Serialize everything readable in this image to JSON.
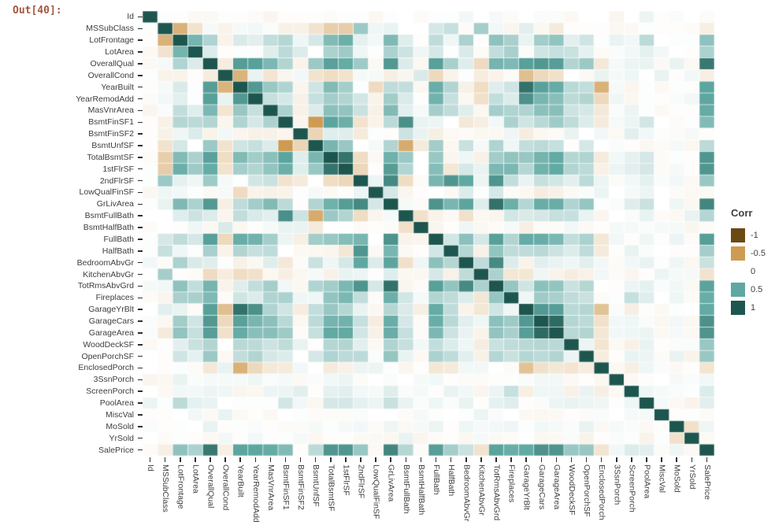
{
  "notebook": {
    "out_label": "Out[40]:"
  },
  "legend": {
    "title": "Corr",
    "ticks": [
      "-1",
      "-0.5",
      "0",
      "0.5",
      "1"
    ],
    "swatch_colors": [
      "#6b4914",
      "#cf9b52",
      "#ffffff",
      "#5fa8a2",
      "#1d564e"
    ]
  },
  "colors": {
    "axis_label": "#3d3d3d",
    "tick_mark": "#2f2f2f",
    "prompt": "#a5573e",
    "background": "#ffffff"
  },
  "chart_data": {
    "type": "heatmap",
    "title": "",
    "xlabel": "",
    "ylabel": "",
    "legend_title": "Corr",
    "legend_position": "right",
    "colormap": {
      "domain": [
        -1,
        -0.5,
        0,
        0.5,
        1
      ],
      "range": [
        "#6b4914",
        "#cf9b52",
        "#ffffff",
        "#5fa8a2",
        "#1d564e"
      ]
    },
    "categories": [
      "Id",
      "MSSubClass",
      "LotFrontage",
      "LotArea",
      "OverallQual",
      "OverallCond",
      "YearBuilt",
      "YearRemodAdd",
      "MasVnrArea",
      "BsmtFinSF1",
      "BsmtFinSF2",
      "BsmtUnfSF",
      "TotalBsmtSF",
      "1stFlrSF",
      "2ndFlrSF",
      "LowQualFinSF",
      "GrLivArea",
      "BsmtFullBath",
      "BsmtHalfBath",
      "FullBath",
      "HalfBath",
      "BedroomAbvGr",
      "KitchenAbvGr",
      "TotRmsAbvGrd",
      "Fireplaces",
      "GarageYrBlt",
      "GarageCars",
      "GarageArea",
      "WoodDeckSF",
      "OpenPorchSF",
      "EnclosedPorch",
      "3SsnPorch",
      "ScreenPorch",
      "PoolArea",
      "MiscVal",
      "MoSold",
      "YrSold",
      "SalePrice"
    ],
    "matrix_upper": [
      [
        1,
        0.01,
        -0.01,
        -0.03,
        -0.03,
        0.01,
        -0.01,
        -0.02,
        -0.05,
        -0.01,
        -0.01,
        -0.01,
        -0.02,
        0.01,
        0.01,
        -0.04,
        0.01,
        0,
        -0.02,
        0.01,
        0.01,
        0.04,
        0,
        0.03,
        -0.02,
        0,
        0.02,
        0.02,
        -0.03,
        0,
        0,
        -0.05,
        0,
        0.06,
        -0.01,
        0.02,
        0,
        -0.02
      ],
      [
        1,
        -0.39,
        -0.14,
        0.03,
        -0.06,
        0.03,
        0.04,
        0.02,
        -0.07,
        -0.07,
        -0.14,
        -0.24,
        -0.25,
        0.31,
        0.05,
        0.07,
        0,
        0,
        0.13,
        0.18,
        -0.02,
        0.28,
        0.04,
        -0.05,
        0.09,
        -0.04,
        -0.1,
        -0.01,
        -0.01,
        -0.01,
        -0.04,
        -0.03,
        0.01,
        -0.01,
        -0.01,
        -0.02,
        -0.08
      ],
      [
        1,
        0.43,
        0.25,
        -0.06,
        0.12,
        0.09,
        0.19,
        0.23,
        0.05,
        0.13,
        0.39,
        0.46,
        0.08,
        0.04,
        0.4,
        0.1,
        -0.01,
        0.2,
        0.05,
        0.26,
        -0.01,
        0.35,
        0.27,
        0.07,
        0.29,
        0.34,
        0.09,
        0.15,
        0.01,
        0.07,
        0.04,
        0.21,
        0,
        0.01,
        0.01,
        0.35
      ],
      [
        1,
        0.11,
        -0.01,
        0.01,
        0.01,
        0.1,
        0.21,
        0.11,
        0,
        0.26,
        0.3,
        0.05,
        0.01,
        0.26,
        0.16,
        0.05,
        0.13,
        0.01,
        0.12,
        -0.02,
        0.19,
        0.27,
        -0.02,
        0.15,
        0.18,
        0.17,
        0.08,
        -0.02,
        0.02,
        0.04,
        0.08,
        0.04,
        0,
        -0.01,
        0.26
      ],
      [
        1,
        -0.09,
        0.57,
        0.55,
        0.41,
        0.24,
        -0.06,
        0.31,
        0.54,
        0.48,
        0.3,
        -0.03,
        0.59,
        0.11,
        -0.04,
        0.55,
        0.27,
        0.1,
        -0.18,
        0.43,
        0.4,
        0.55,
        0.6,
        0.56,
        0.24,
        0.31,
        -0.11,
        0.03,
        0.06,
        0.07,
        -0.03,
        0.07,
        -0.03,
        0.79
      ],
      [
        1,
        -0.38,
        0.07,
        -0.13,
        -0.05,
        0.04,
        -0.14,
        -0.17,
        -0.14,
        0.03,
        0.03,
        -0.08,
        -0.05,
        0.12,
        -0.19,
        -0.06,
        0.01,
        -0.09,
        -0.06,
        -0.02,
        -0.32,
        -0.19,
        -0.15,
        0,
        -0.03,
        0.07,
        0.03,
        0.05,
        0,
        0.07,
        -0.01,
        0.04,
        -0.08
      ],
      [
        1,
        0.59,
        0.32,
        0.25,
        -0.05,
        0.15,
        0.39,
        0.28,
        0.01,
        -0.18,
        0.2,
        0.19,
        -0.04,
        0.47,
        0.24,
        -0.07,
        -0.17,
        0.1,
        0.15,
        0.83,
        0.54,
        0.48,
        0.22,
        0.19,
        -0.39,
        0.03,
        -0.05,
        0.01,
        -0.03,
        0.01,
        -0.01,
        0.52
      ],
      [
        1,
        0.18,
        0.13,
        -0.07,
        0.18,
        0.29,
        0.24,
        0.14,
        -0.06,
        0.29,
        0.12,
        -0.01,
        0.44,
        0.18,
        -0.04,
        -0.15,
        0.19,
        0.11,
        0.64,
        0.42,
        0.37,
        0.21,
        0.24,
        -0.19,
        0.05,
        -0.04,
        0.01,
        -0.01,
        0.02,
        0.04,
        0.51
      ],
      [
        1,
        0.26,
        -0.07,
        0.11,
        0.36,
        0.34,
        0.17,
        -0.07,
        0.39,
        0.09,
        0.03,
        0.28,
        0.2,
        0.1,
        -0.04,
        0.28,
        0.25,
        0.25,
        0.36,
        0.37,
        0.16,
        0.13,
        -0.11,
        0.02,
        0.06,
        0.01,
        -0.03,
        -0.01,
        -0.01,
        0.48
      ],
      [
        1,
        -0.05,
        -0.5,
        0.52,
        0.46,
        -0.14,
        -0.06,
        0.21,
        0.65,
        0.07,
        0.06,
        0,
        -0.11,
        -0.08,
        0.04,
        0.26,
        0.15,
        0.22,
        0.3,
        0.2,
        0.11,
        -0.1,
        0.03,
        0.06,
        0.14,
        0,
        -0.02,
        0.01,
        0.39
      ],
      [
        1,
        -0.21,
        0.1,
        0.1,
        -0.1,
        0.01,
        -0.01,
        0.16,
        0.07,
        -0.08,
        -0.03,
        -0.02,
        -0.04,
        -0.04,
        0.05,
        -0.09,
        -0.04,
        -0.02,
        0.07,
        0,
        0.04,
        -0.03,
        0.09,
        0.04,
        0.01,
        -0.02,
        0.03,
        -0.01
      ],
      [
        1,
        0.42,
        0.32,
        0,
        0.03,
        0.24,
        -0.42,
        -0.1,
        0.29,
        -0.04,
        0.17,
        0.03,
        0.25,
        0.05,
        0.19,
        0.21,
        0.18,
        -0.01,
        0.13,
        0,
        0.02,
        -0.01,
        -0.04,
        -0.02,
        0.03,
        -0.04,
        0.21
      ],
      [
        1,
        0.82,
        -0.17,
        -0.03,
        0.45,
        0.31,
        0,
        0.32,
        -0.05,
        0.05,
        -0.07,
        0.29,
        0.34,
        0.32,
        0.43,
        0.49,
        0.23,
        0.25,
        -0.1,
        0.04,
        0.08,
        0.13,
        -0.02,
        0.01,
        -0.01,
        0.61
      ],
      [
        1,
        -0.2,
        -0.01,
        0.57,
        0.24,
        0,
        0.38,
        -0.12,
        0.13,
        0.07,
        0.41,
        0.41,
        0.23,
        0.44,
        0.49,
        0.24,
        0.21,
        -0.07,
        0.06,
        0.09,
        0.13,
        -0.02,
        0.03,
        -0.01,
        0.61
      ],
      [
        1,
        0.06,
        0.69,
        -0.17,
        -0.02,
        0.42,
        0.61,
        0.5,
        0.06,
        0.62,
        0.19,
        0.07,
        0.18,
        0.14,
        0.09,
        0.21,
        0.06,
        -0.02,
        0.04,
        0.08,
        0.02,
        0.04,
        -0.03,
        0.32
      ],
      [
        1,
        0.13,
        -0.05,
        -0.01,
        0,
        -0.03,
        0.11,
        0.01,
        0.13,
        -0.02,
        -0.04,
        -0.09,
        -0.07,
        -0.03,
        0.02,
        0.06,
        0,
        0.03,
        0.06,
        0,
        -0.02,
        -0.03,
        -0.03
      ],
      [
        1,
        0.03,
        -0.02,
        0.63,
        0.42,
        0.52,
        0.1,
        0.83,
        0.46,
        0.23,
        0.47,
        0.47,
        0.25,
        0.33,
        0.01,
        0.02,
        0.1,
        0.17,
        0,
        0.05,
        -0.04,
        0.71
      ],
      [
        1,
        -0.15,
        -0.06,
        -0.03,
        -0.15,
        -0.04,
        -0.05,
        0.14,
        0.12,
        0.13,
        0.18,
        0.18,
        0.07,
        -0.05,
        0,
        0.02,
        0.07,
        -0.02,
        -0.03,
        0.07,
        0.23
      ],
      [
        1,
        -0.05,
        -0.01,
        0.05,
        -0.04,
        -0.02,
        0.03,
        -0.08,
        -0.02,
        -0.02,
        0.04,
        -0.03,
        -0.01,
        0.03,
        0.03,
        0.02,
        0.03,
        0.03,
        -0.05,
        -0.02
      ],
      [
        1,
        0.14,
        0.36,
        0.13,
        0.55,
        0.24,
        0.48,
        0.47,
        0.41,
        0.19,
        0.26,
        -0.12,
        0.04,
        -0.01,
        0.05,
        -0.01,
        0.06,
        -0.02,
        0.56
      ],
      [
        1,
        0.23,
        -0.07,
        0.34,
        0.2,
        0.2,
        0.22,
        0.16,
        0.11,
        0.2,
        -0.1,
        -0.01,
        0.07,
        0.02,
        0,
        -0.01,
        -0.01,
        0.28
      ],
      [
        1,
        0.2,
        0.68,
        0.11,
        -0.06,
        0.09,
        0.07,
        0.05,
        0.09,
        0.04,
        -0.02,
        0.04,
        0.07,
        0.01,
        0.05,
        -0.04,
        0.17
      ],
      [
        1,
        0.26,
        -0.12,
        -0.12,
        0.05,
        -0.06,
        -0.09,
        -0.07,
        0.04,
        -0.02,
        -0.05,
        -0.01,
        0.06,
        0.03,
        0.03,
        -0.14
      ],
      [
        1,
        0.33,
        0.15,
        0.36,
        0.34,
        0.17,
        0.23,
        0,
        -0.01,
        0.06,
        0.08,
        0.02,
        0.04,
        -0.03,
        0.53
      ],
      [
        1,
        0.05,
        0.3,
        0.27,
        0.2,
        0.17,
        -0.02,
        0.01,
        0.18,
        0.1,
        0,
        0.05,
        -0.02,
        0.47
      ],
      [
        1,
        0.59,
        0.56,
        0.22,
        0.23,
        -0.3,
        0.02,
        -0.08,
        -0.01,
        -0.03,
        0.01,
        0,
        0.49
      ],
      [
        1,
        0.88,
        0.23,
        0.21,
        -0.15,
        0.04,
        0.05,
        0.02,
        -0.04,
        0.04,
        -0.04,
        0.64
      ],
      [
        1,
        0.22,
        0.24,
        -0.12,
        0.04,
        0.05,
        0.06,
        -0.03,
        0.03,
        -0.03,
        0.62
      ],
      [
        1,
        0.06,
        -0.13,
        -0.03,
        -0.07,
        0.07,
        -0.01,
        0.02,
        0.02,
        0.32
      ],
      [
        1,
        -0.09,
        -0.01,
        0.07,
        0.06,
        -0.02,
        0.07,
        -0.06,
        0.32
      ],
      [
        1,
        -0.04,
        -0.08,
        0.05,
        0.02,
        -0.03,
        -0.01,
        -0.13
      ],
      [
        1,
        -0.03,
        -0.01,
        0,
        0.03,
        0.02,
        0.04
      ],
      [
        1,
        0.05,
        0.03,
        0.02,
        0.01,
        0.11
      ],
      [
        1,
        0.03,
        -0.03,
        -0.06,
        0.09
      ],
      [
        1,
        -0.01,
        0.01,
        -0.02
      ],
      [
        1,
        -0.15,
        0.05
      ],
      [
        1,
        -0.03
      ],
      [
        1
      ]
    ]
  }
}
